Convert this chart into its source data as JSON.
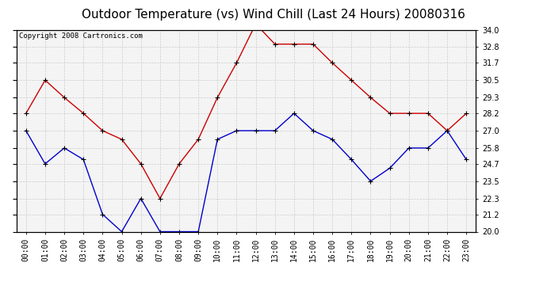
{
  "title": "Outdoor Temperature (vs) Wind Chill (Last 24 Hours) 20080316",
  "copyright": "Copyright 2008 Cartronics.com",
  "hours": [
    "00:00",
    "01:00",
    "02:00",
    "03:00",
    "04:00",
    "05:00",
    "06:00",
    "07:00",
    "08:00",
    "09:00",
    "10:00",
    "11:00",
    "12:00",
    "13:00",
    "14:00",
    "15:00",
    "16:00",
    "17:00",
    "18:00",
    "19:00",
    "20:00",
    "21:00",
    "22:00",
    "23:00"
  ],
  "red_data": [
    28.2,
    30.5,
    29.3,
    28.2,
    27.0,
    26.4,
    24.7,
    22.3,
    24.7,
    26.4,
    29.3,
    31.7,
    34.4,
    33.0,
    33.0,
    33.0,
    31.7,
    30.5,
    29.3,
    28.2,
    28.2,
    28.2,
    27.0,
    28.2
  ],
  "blue_data": [
    27.0,
    24.7,
    25.8,
    25.0,
    21.2,
    20.0,
    22.3,
    20.0,
    20.0,
    20.0,
    26.4,
    27.0,
    27.0,
    27.0,
    28.2,
    27.0,
    26.4,
    25.0,
    23.5,
    24.4,
    25.8,
    25.8,
    27.0,
    25.0
  ],
  "ylim_min": 20.0,
  "ylim_max": 34.0,
  "yticks": [
    20.0,
    21.2,
    22.3,
    23.5,
    24.7,
    25.8,
    27.0,
    28.2,
    29.3,
    30.5,
    31.7,
    32.8,
    34.0
  ],
  "red_color": "#cc0000",
  "blue_color": "#0000cc",
  "bg_color": "#ffffff",
  "plot_bg_color": "#f4f4f4",
  "grid_color": "#cccccc",
  "title_fontsize": 11,
  "tick_fontsize": 7,
  "copyright_fontsize": 6.5
}
